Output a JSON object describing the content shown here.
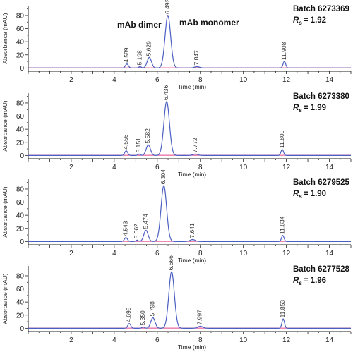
{
  "chart_data": [
    {
      "type": "line",
      "batch": "Batch 6273369",
      "rs_symbol": "R",
      "rs_sub": "s",
      "rs_value": "= 1.92",
      "xlabel": "Time (min)",
      "ylabel": "Absorbance (mAU)",
      "xlim": [
        0,
        15
      ],
      "ylim": [
        -5,
        95
      ],
      "xticks": [
        2,
        4,
        6,
        8,
        10,
        12,
        14
      ],
      "yticks": [
        0,
        20,
        40,
        60,
        80
      ],
      "annotations": [
        "mAb dimer",
        "mAb monomer"
      ],
      "peaks": [
        {
          "label": "4.589",
          "x": 4.589,
          "y": 6
        },
        {
          "label": "5.198",
          "x": 5.198,
          "y": 2
        },
        {
          "label": "5.629",
          "x": 5.629,
          "y": 16
        },
        {
          "label": "6.492",
          "x": 6.492,
          "y": 80
        },
        {
          "label": "7.847",
          "x": 7.847,
          "y": 2
        },
        {
          "label": "11.908",
          "x": 11.908,
          "y": 10
        }
      ]
    },
    {
      "type": "line",
      "batch": "Batch 6273380",
      "rs_symbol": "R",
      "rs_sub": "s",
      "rs_value": "= 1.99",
      "xlabel": "Time (min)",
      "ylabel": "Absorbance (mAU)",
      "xlim": [
        0,
        15
      ],
      "ylim": [
        -5,
        95
      ],
      "xticks": [
        2,
        4,
        6,
        8,
        10,
        12,
        14
      ],
      "yticks": [
        0,
        20,
        40,
        60,
        80
      ],
      "annotations": [],
      "peaks": [
        {
          "label": "4.556",
          "x": 4.556,
          "y": 7
        },
        {
          "label": "5.151",
          "x": 5.151,
          "y": 2
        },
        {
          "label": "5.582",
          "x": 5.582,
          "y": 16
        },
        {
          "label": "6.436",
          "x": 6.436,
          "y": 82
        },
        {
          "label": "7.772",
          "x": 7.772,
          "y": 2
        },
        {
          "label": "11.809",
          "x": 11.809,
          "y": 9
        }
      ]
    },
    {
      "type": "line",
      "batch": "Batch 6279525",
      "rs_symbol": "R",
      "rs_sub": "s",
      "rs_value": "= 1.90",
      "xlabel": "Time (min)",
      "ylabel": "Absorbance (mAU)",
      "xlim": [
        0,
        15
      ],
      "ylim": [
        -5,
        95
      ],
      "xticks": [
        2,
        4,
        6,
        8,
        10,
        12,
        14
      ],
      "yticks": [
        0,
        20,
        40,
        60,
        80
      ],
      "annotations": [],
      "peaks": [
        {
          "label": "4.543",
          "x": 4.543,
          "y": 6
        },
        {
          "label": "5.062",
          "x": 5.062,
          "y": 2
        },
        {
          "label": "5.474",
          "x": 5.474,
          "y": 17
        },
        {
          "label": "6.304",
          "x": 6.304,
          "y": 85
        },
        {
          "label": "7.641",
          "x": 7.641,
          "y": 3
        },
        {
          "label": "11.834",
          "x": 11.834,
          "y": 9
        }
      ]
    },
    {
      "type": "line",
      "batch": "Batch 6277528",
      "rs_symbol": "R",
      "rs_sub": "s",
      "rs_value": "= 1.96",
      "xlabel": "Time (min)",
      "ylabel": "Absorbance (mAU)",
      "xlim": [
        0,
        15
      ],
      "ylim": [
        -5,
        95
      ],
      "xticks": [
        2,
        4,
        6,
        8,
        10,
        12,
        14
      ],
      "yticks": [
        0,
        20,
        40,
        60,
        80
      ],
      "annotations": [],
      "peaks": [
        {
          "label": "4.698",
          "x": 4.698,
          "y": 7
        },
        {
          "label": "5.350",
          "x": 5.35,
          "y": 2
        },
        {
          "label": "5.798",
          "x": 5.798,
          "y": 16
        },
        {
          "label": "6.666",
          "x": 6.666,
          "y": 86
        },
        {
          "label": "7.997",
          "x": 7.997,
          "y": 3
        },
        {
          "label": "11.853",
          "x": 11.853,
          "y": 14
        }
      ]
    }
  ],
  "colors": {
    "trace": "#4a5fc1",
    "baseline": "#e0408a",
    "axis": "#222222"
  }
}
